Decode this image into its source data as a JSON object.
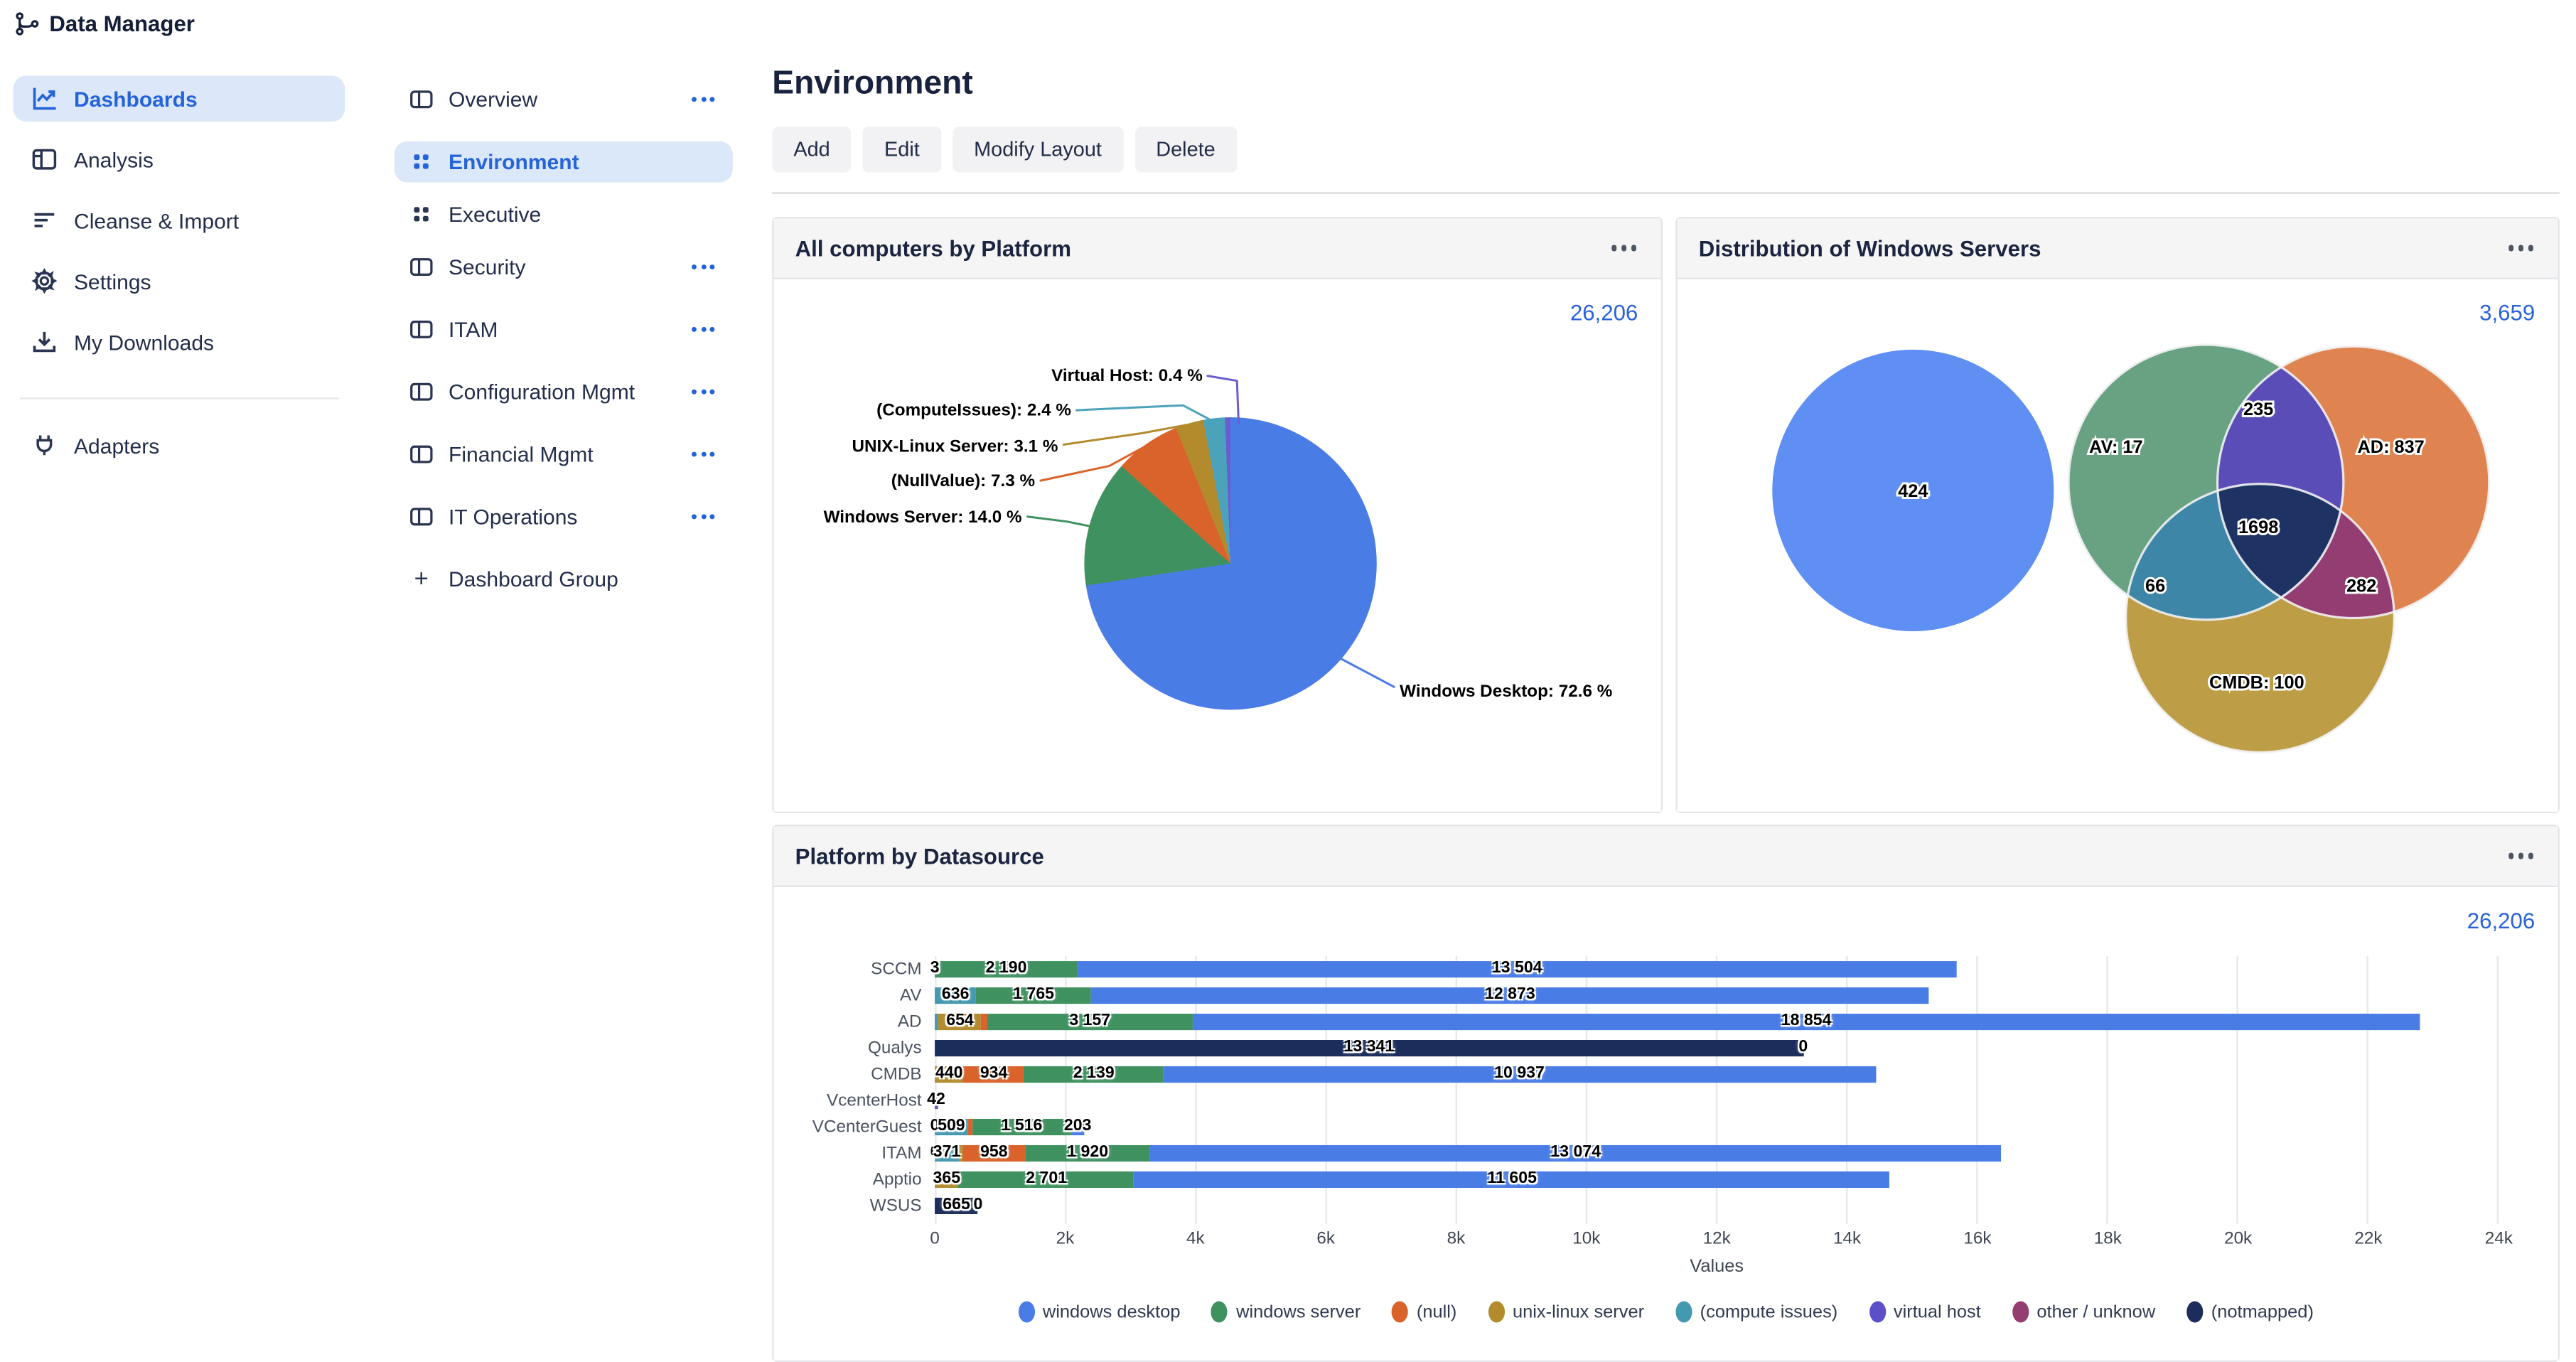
{
  "app": {
    "title": "Data Manager"
  },
  "colors": {
    "accent": "#2563d9",
    "total_text": "#2962d9",
    "active_item_bg": "#dce8f9",
    "card_header_bg": "#f5f5f6",
    "series": {
      "windows desktop": "#4a7ce6",
      "windows server": "#3f925f",
      "(null)": "#d9632a",
      "unix-linux server": "#b38b2d",
      "(compute issues)": "#4498b0",
      "virtual host": "#5b50c8",
      "other / unknow": "#933d72",
      "(notmapped)": "#1c2d5c"
    }
  },
  "sidebar": {
    "items": [
      {
        "label": "Dashboards",
        "icon": "line-chart-icon",
        "active": true
      },
      {
        "label": "Analysis",
        "icon": "analysis-panel-icon",
        "active": false
      },
      {
        "label": "Cleanse & Import",
        "icon": "filter-lines-icon",
        "active": false
      },
      {
        "label": "Settings",
        "icon": "gear-icon",
        "active": false
      },
      {
        "label": "My Downloads",
        "icon": "download-icon",
        "active": false
      }
    ],
    "adapters": {
      "label": "Adapters",
      "icon": "plug-icon"
    }
  },
  "nav": {
    "items": [
      {
        "label": "Overview",
        "icon": "split-panel-icon",
        "has_menu": true,
        "active": false
      },
      {
        "label": "Environment",
        "icon": "grid-icon",
        "has_menu": false,
        "active": true
      },
      {
        "label": "Executive",
        "icon": "grid-icon",
        "has_menu": false,
        "active": false
      },
      {
        "label": "Security",
        "icon": "split-panel-icon",
        "has_menu": true,
        "active": false
      },
      {
        "label": "ITAM",
        "icon": "split-panel-icon",
        "has_menu": true,
        "active": false
      },
      {
        "label": "Configuration Mgmt",
        "icon": "split-panel-icon",
        "has_menu": true,
        "active": false
      },
      {
        "label": "Financial Mgmt",
        "icon": "split-panel-icon",
        "has_menu": true,
        "active": false
      },
      {
        "label": "IT Operations",
        "icon": "split-panel-icon",
        "has_menu": true,
        "active": false
      }
    ],
    "add_group_label": "Dashboard Group"
  },
  "page": {
    "title": "Environment",
    "actions": [
      "Add",
      "Edit",
      "Modify Layout",
      "Delete"
    ]
  },
  "cards": {
    "pie": {
      "title": "All computers by Platform",
      "total": "26,206"
    },
    "venn": {
      "title": "Distribution of Windows Servers",
      "total": "3,659"
    },
    "bars": {
      "title": "Platform by Datasource",
      "total": "26,206"
    }
  },
  "chart_data": [
    {
      "type": "pie",
      "title": "All computers by Platform",
      "total": "26,206",
      "slices": [
        {
          "label": "Windows Desktop",
          "percent": 72.6,
          "display": "Windows Desktop: 72.6 %",
          "color": "#4a7ce6"
        },
        {
          "label": "Windows Server",
          "percent": 14.0,
          "display": "Windows Server: 14.0 %",
          "color": "#3f925f"
        },
        {
          "label": "(NullValue)",
          "percent": 7.3,
          "display": "(NullValue): 7.3 %",
          "color": "#d9632a"
        },
        {
          "label": "UNIX-Linux Server",
          "percent": 3.1,
          "display": "UNIX-Linux Server: 3.1 %",
          "color": "#b38b2d"
        },
        {
          "label": "(ComputeIssues)",
          "percent": 2.4,
          "display": "(ComputeIssues): 2.4 %",
          "color": "#4ba3bb"
        },
        {
          "label": "Virtual Host",
          "percent": 0.4,
          "display": "Virtual Host: 0.4 %",
          "color": "#6a5ecf"
        }
      ]
    },
    {
      "type": "venn",
      "title": "Distribution of Windows Servers",
      "total": "3,659",
      "sets": [
        "AV",
        "AD",
        "CMDB"
      ],
      "regions": [
        {
          "key": "blue",
          "region": "standalone",
          "label": "424"
        },
        {
          "key": "av",
          "region": "AV only",
          "label": "AV: 17"
        },
        {
          "key": "ad",
          "region": "AD only",
          "label": "AD: 837"
        },
        {
          "key": "cmdb",
          "region": "CMDB only",
          "label": "CMDB: 100"
        },
        {
          "key": "av_ad",
          "region": "AV∩AD",
          "label": "235"
        },
        {
          "key": "av_cmdb",
          "region": "AV∩CMDB",
          "label": "66"
        },
        {
          "key": "ad_cmdb",
          "region": "AD∩CMDB",
          "label": "282"
        },
        {
          "key": "center",
          "region": "AV∩AD∩CMDB",
          "label": "1698"
        }
      ],
      "colors": {
        "standalone": "#5f8ff2",
        "av": "#69a183",
        "ad": "#df8450",
        "cmdb": "#bd9d45",
        "av_ad": "#5a4db8",
        "av_cmdb": "#3e86a8",
        "ad_cmdb": "#933d72",
        "center": "#1e3263"
      }
    },
    {
      "type": "bar",
      "stacked": true,
      "orientation": "horizontal",
      "title": "Platform by Datasource",
      "total": "26,206",
      "xlabel": "Values",
      "x_max": 24000,
      "x_ticks": [
        "0",
        "2k",
        "4k",
        "6k",
        "8k",
        "10k",
        "12k",
        "14k",
        "16k",
        "18k",
        "20k",
        "22k",
        "24k"
      ],
      "legend": [
        "windows desktop",
        "windows server",
        "(null)",
        "unix-linux server",
        "(compute issues)",
        "virtual host",
        "other / unknow",
        "(notmapped)"
      ],
      "rows": [
        {
          "category": "SCCM",
          "segments": [
            {
              "series": "(compute issues)",
              "value": 3,
              "label": "3"
            },
            {
              "series": "windows server",
              "value": 2190,
              "label": "2 190"
            },
            {
              "series": "windows desktop",
              "value": 13504,
              "label": "13 504"
            }
          ]
        },
        {
          "category": "AV",
          "segments": [
            {
              "series": "(compute issues)",
              "value": 636,
              "label": "636"
            },
            {
              "series": "windows server",
              "value": 1765,
              "label": "1 765"
            },
            {
              "series": "windows desktop",
              "value": 12873,
              "label": "12 873"
            }
          ]
        },
        {
          "category": "AD",
          "segments": [
            {
              "series": "(compute issues)",
              "value": 60,
              "label": ""
            },
            {
              "series": "unix-linux server",
              "value": 654,
              "label": "654"
            },
            {
              "series": "(null)",
              "value": 90,
              "label": ""
            },
            {
              "series": "windows server",
              "value": 3157,
              "label": "3 157"
            },
            {
              "series": "windows desktop",
              "value": 18854,
              "label": "18 854"
            }
          ]
        },
        {
          "category": "Qualys",
          "segments": [
            {
              "series": "(notmapped)",
              "value": 13341,
              "label": "13 341"
            },
            {
              "series": "windows desktop",
              "value": 0,
              "label": "0"
            }
          ]
        },
        {
          "category": "CMDB",
          "segments": [
            {
              "series": "unix-linux server",
              "value": 440,
              "label": "440"
            },
            {
              "series": "(null)",
              "value": 934,
              "label": "934"
            },
            {
              "series": "windows server",
              "value": 2139,
              "label": "2 139"
            },
            {
              "series": "windows desktop",
              "value": 10937,
              "label": "10 937"
            }
          ]
        },
        {
          "category": "VcenterHost",
          "segments": [
            {
              "series": "virtual host",
              "value": 42,
              "label": "42"
            }
          ]
        },
        {
          "category": "VCenterGuest",
          "segments": [
            {
              "series": "(notmapped)",
              "value": 0,
              "label": "0"
            },
            {
              "series": "(compute issues)",
              "value": 509,
              "label": "509"
            },
            {
              "series": "(null)",
              "value": 70,
              "label": ""
            },
            {
              "series": "windows server",
              "value": 1516,
              "label": "1 516"
            },
            {
              "series": "windows desktop",
              "value": 203,
              "label": "203"
            }
          ]
        },
        {
          "category": "ITAM",
          "segments": [
            {
              "series": "(notmapped)",
              "value": 0,
              "label": "0"
            },
            {
              "series": "(compute issues)",
              "value": 371,
              "label": "371"
            },
            {
              "series": "unix-linux server",
              "value": 60,
              "label": ""
            },
            {
              "series": "(null)",
              "value": 958,
              "label": "958"
            },
            {
              "series": "windows server",
              "value": 1920,
              "label": "1 920"
            },
            {
              "series": "windows desktop",
              "value": 13074,
              "label": "13 074"
            }
          ]
        },
        {
          "category": "Apptio",
          "segments": [
            {
              "series": "unix-linux server",
              "value": 365,
              "label": "365"
            },
            {
              "series": "windows server",
              "value": 2701,
              "label": "2 701"
            },
            {
              "series": "windows desktop",
              "value": 11605,
              "label": "11 605"
            }
          ]
        },
        {
          "category": "WSUS",
          "segments": [
            {
              "series": "(notmapped)",
              "value": 665,
              "label": "665"
            },
            {
              "series": "windows desktop",
              "value": 0,
              "label": "0"
            }
          ]
        }
      ]
    }
  ]
}
